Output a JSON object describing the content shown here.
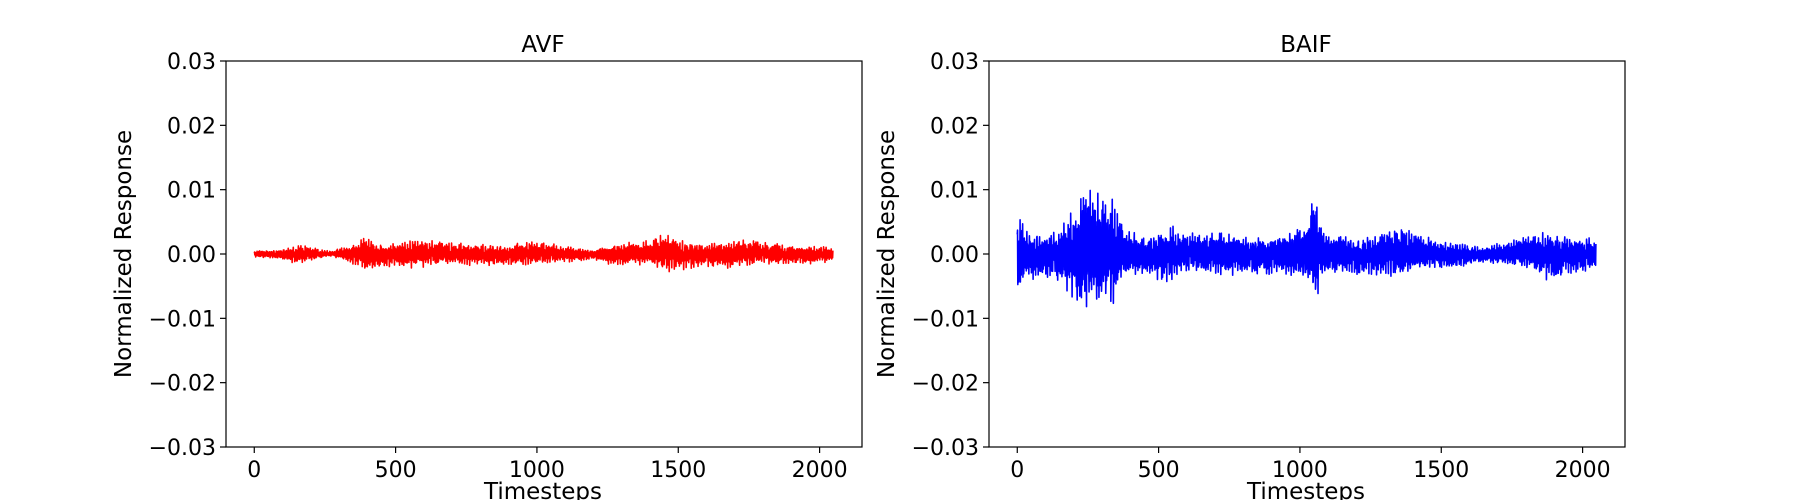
{
  "chart_data": [
    {
      "type": "line",
      "title": "AVF",
      "xlabel": "Timesteps",
      "ylabel": "Normalized Response",
      "xlim": [
        -100,
        2150
      ],
      "ylim": [
        -0.03,
        0.03
      ],
      "xticks": [
        "0",
        "500",
        "1000",
        "1500",
        "2000"
      ],
      "yticks": [
        "0.03",
        "0.02",
        "0.01",
        "0.00",
        "−0.01",
        "−0.02",
        "−0.03"
      ],
      "grid": false,
      "series": [
        {
          "color": "#ff0000",
          "x_range": [
            0,
            2047
          ],
          "envelope": [
            {
              "x": 0,
              "amp": 0.0005
            },
            {
              "x": 100,
              "amp": 0.0008
            },
            {
              "x": 160,
              "amp": 0.0016
            },
            {
              "x": 220,
              "amp": 0.0008
            },
            {
              "x": 270,
              "amp": 0.0004
            },
            {
              "x": 330,
              "amp": 0.0012
            },
            {
              "x": 390,
              "amp": 0.0026
            },
            {
              "x": 460,
              "amp": 0.0018
            },
            {
              "x": 520,
              "amp": 0.002
            },
            {
              "x": 600,
              "amp": 0.0022
            },
            {
              "x": 700,
              "amp": 0.0016
            },
            {
              "x": 800,
              "amp": 0.0018
            },
            {
              "x": 900,
              "amp": 0.0015
            },
            {
              "x": 970,
              "amp": 0.002
            },
            {
              "x": 1050,
              "amp": 0.0016
            },
            {
              "x": 1120,
              "amp": 0.0012
            },
            {
              "x": 1200,
              "amp": 0.0008
            },
            {
              "x": 1260,
              "amp": 0.0016
            },
            {
              "x": 1340,
              "amp": 0.0018
            },
            {
              "x": 1400,
              "amp": 0.002
            },
            {
              "x": 1450,
              "amp": 0.003
            },
            {
              "x": 1530,
              "amp": 0.0022
            },
            {
              "x": 1600,
              "amp": 0.0018
            },
            {
              "x": 1700,
              "amp": 0.0024
            },
            {
              "x": 1800,
              "amp": 0.0018
            },
            {
              "x": 1900,
              "amp": 0.0014
            },
            {
              "x": 1980,
              "amp": 0.0016
            },
            {
              "x": 2047,
              "amp": 0.001
            }
          ]
        }
      ]
    },
    {
      "type": "line",
      "title": "BAIF",
      "xlabel": "Timesteps",
      "ylabel": "Normalized Response",
      "xlim": [
        -100,
        2150
      ],
      "ylim": [
        -0.03,
        0.03
      ],
      "xticks": [
        "0",
        "500",
        "1000",
        "1500",
        "2000"
      ],
      "yticks": [
        "0.03",
        "0.02",
        "0.01",
        "0.00",
        "−0.01",
        "−0.02",
        "−0.03"
      ],
      "grid": false,
      "series": [
        {
          "color": "#0000ff",
          "x_range": [
            0,
            2047
          ],
          "envelope": [
            {
              "x": 0,
              "amp": 0.008
            },
            {
              "x": 30,
              "amp": 0.004
            },
            {
              "x": 80,
              "amp": 0.0035
            },
            {
              "x": 130,
              "amp": 0.004
            },
            {
              "x": 180,
              "amp": 0.006
            },
            {
              "x": 250,
              "amp": 0.0095
            },
            {
              "x": 300,
              "amp": 0.009
            },
            {
              "x": 340,
              "amp": 0.008
            },
            {
              "x": 380,
              "amp": 0.004
            },
            {
              "x": 450,
              "amp": 0.003
            },
            {
              "x": 540,
              "amp": 0.0045
            },
            {
              "x": 600,
              "amp": 0.003
            },
            {
              "x": 700,
              "amp": 0.0035
            },
            {
              "x": 800,
              "amp": 0.003
            },
            {
              "x": 900,
              "amp": 0.003
            },
            {
              "x": 980,
              "amp": 0.0035
            },
            {
              "x": 1020,
              "amp": 0.0045
            },
            {
              "x": 1050,
              "amp": 0.01
            },
            {
              "x": 1080,
              "amp": 0.0035
            },
            {
              "x": 1150,
              "amp": 0.003
            },
            {
              "x": 1250,
              "amp": 0.003
            },
            {
              "x": 1350,
              "amp": 0.004
            },
            {
              "x": 1450,
              "amp": 0.0025
            },
            {
              "x": 1550,
              "amp": 0.002
            },
            {
              "x": 1650,
              "amp": 0.0012
            },
            {
              "x": 1730,
              "amp": 0.002
            },
            {
              "x": 1800,
              "amp": 0.0025
            },
            {
              "x": 1880,
              "amp": 0.004
            },
            {
              "x": 1950,
              "amp": 0.003
            },
            {
              "x": 2047,
              "amp": 0.0025
            }
          ]
        }
      ]
    }
  ]
}
